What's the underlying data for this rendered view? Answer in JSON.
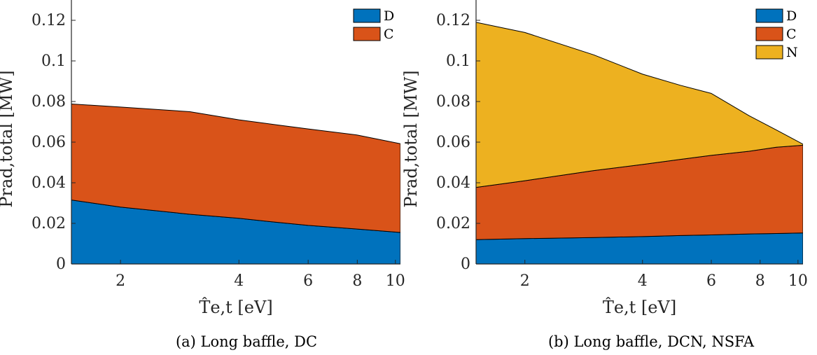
{
  "chart_data": [
    {
      "type": "area",
      "stacked": true,
      "caption": "(a) Long baffle, DC",
      "xlabel": "T̂e,t [eV]",
      "ylabel": "Prad,total [MW]",
      "xscale": "log",
      "xlim": [
        1.5,
        10.3
      ],
      "ylim": [
        0,
        0.13
      ],
      "xticks": [
        2,
        4,
        6,
        8,
        10
      ],
      "xtick_labels": [
        "2",
        "4",
        "6",
        "8",
        "10"
      ],
      "yticks": [
        0,
        0.02,
        0.04,
        0.06,
        0.08,
        0.1,
        0.12
      ],
      "ytick_labels": [
        "0",
        "0.02",
        "0.04",
        "0.06",
        "0.08",
        "0.1",
        "0.12"
      ],
      "grid": false,
      "legend_position": "top-right",
      "x": [
        1.5,
        2,
        3,
        4,
        5,
        6,
        8,
        10.3
      ],
      "series": [
        {
          "name": "D",
          "color": "#0072BD",
          "values": [
            0.0315,
            0.028,
            0.0245,
            0.0225,
            0.0205,
            0.019,
            0.0172,
            0.0155
          ]
        },
        {
          "name": "C",
          "color": "#D95319",
          "values": [
            0.0473,
            0.0493,
            0.0505,
            0.0485,
            0.048,
            0.0475,
            0.0463,
            0.0437
          ]
        }
      ]
    },
    {
      "type": "area",
      "stacked": true,
      "caption": "(b) Long baffle, DCN, NSFA",
      "xlabel": "T̂e,t [eV]",
      "ylabel": "Prad,total [MW]",
      "xscale": "log",
      "xlim": [
        1.5,
        10.3
      ],
      "ylim": [
        0,
        0.13
      ],
      "xticks": [
        2,
        4,
        6,
        8,
        10
      ],
      "xtick_labels": [
        "2",
        "4",
        "6",
        "8",
        "10"
      ],
      "yticks": [
        0,
        0.02,
        0.04,
        0.06,
        0.08,
        0.1,
        0.12
      ],
      "ytick_labels": [
        "0",
        "0.02",
        "0.04",
        "0.06",
        "0.08",
        "0.1",
        "0.12"
      ],
      "grid": false,
      "legend_position": "top-right",
      "x": [
        1.5,
        2,
        3,
        4,
        5,
        6,
        7.5,
        8.8,
        10.3
      ],
      "series": [
        {
          "name": "D",
          "color": "#0072BD",
          "values": [
            0.012,
            0.0125,
            0.013,
            0.0135,
            0.014,
            0.0143,
            0.0148,
            0.015,
            0.0153
          ]
        },
        {
          "name": "C",
          "color": "#D95319",
          "values": [
            0.0257,
            0.0285,
            0.033,
            0.0355,
            0.0375,
            0.0392,
            0.0407,
            0.0425,
            0.0432
          ]
        },
        {
          "name": "N",
          "color": "#EDB120",
          "values": [
            0.0813,
            0.073,
            0.057,
            0.0445,
            0.0365,
            0.0305,
            0.0175,
            0.0085,
            0.0005
          ]
        }
      ]
    }
  ]
}
